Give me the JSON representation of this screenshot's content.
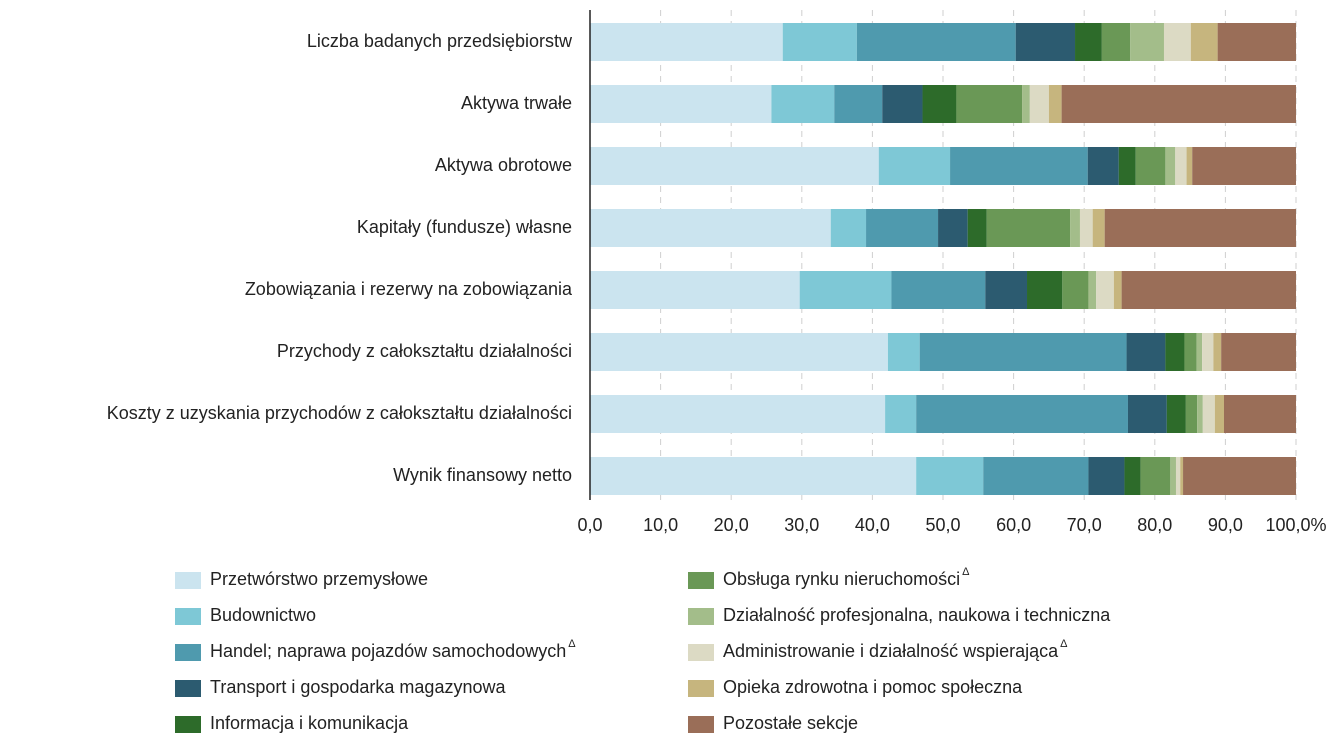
{
  "chart_data": {
    "type": "stacked-bar-horizontal",
    "categories": [
      "Liczba badanych przedsiębiorstw",
      "Aktywa trwałe",
      "Aktywa obrotowe",
      "Kapitały (fundusze) własne",
      "Zobowiązania i rezerwy na zobowiązania",
      "Przychody z całokształtu działalności",
      "Koszty z uzyskania przychodów z całokształtu działalności",
      "Wynik finansowy netto"
    ],
    "series": [
      {
        "name": "Przetwórstwo przemysłowe",
        "color": "#cbe4ef",
        "values": [
          27.3,
          25.7,
          40.9,
          34.1,
          29.7,
          42.2,
          41.8,
          46.2
        ]
      },
      {
        "name": "Budownictwo",
        "color": "#7ec8d6",
        "values": [
          10.5,
          8.9,
          10.1,
          5.0,
          13.0,
          4.5,
          4.4,
          9.5
        ]
      },
      {
        "name": "Handel; naprawa pojazdów samochodowych",
        "name_sup": "Δ",
        "color": "#4f9aae",
        "values": [
          22.5,
          6.8,
          19.5,
          10.2,
          13.3,
          29.3,
          30.0,
          14.9
        ]
      },
      {
        "name": "Transport i gospodarka magazynowa",
        "color": "#2c5b70",
        "values": [
          8.4,
          5.7,
          4.4,
          4.2,
          5.9,
          5.5,
          5.5,
          5.1
        ]
      },
      {
        "name": "Informacja i komunikacja",
        "color": "#2d6b2a",
        "values": [
          3.8,
          4.8,
          2.4,
          2.7,
          5.0,
          2.7,
          2.7,
          2.3
        ]
      },
      {
        "name": "Obsługa rynku nieruchomości",
        "name_sup": "Δ",
        "color": "#6a9856",
        "values": [
          4.0,
          9.3,
          4.2,
          11.8,
          3.7,
          1.7,
          1.6,
          4.2
        ]
      },
      {
        "name": "Działalność profesjonalna, naukowa i techniczna",
        "color": "#a3bd8a",
        "values": [
          4.8,
          1.1,
          1.4,
          1.4,
          1.1,
          0.8,
          0.8,
          0.8
        ]
      },
      {
        "name": "Administrowanie i działalność wspierająca",
        "name_sup": "Δ",
        "color": "#dcdac4",
        "values": [
          3.8,
          2.7,
          1.6,
          1.8,
          2.5,
          1.6,
          1.7,
          0.6
        ]
      },
      {
        "name": "Opieka zdrowotna i pomoc społeczna",
        "color": "#c6b57e",
        "values": [
          3.8,
          1.8,
          0.8,
          1.7,
          1.1,
          1.1,
          1.3,
          0.4
        ]
      },
      {
        "name": "Pozostałe sekcje",
        "color": "#9a6e58",
        "values": [
          11.1,
          33.2,
          14.7,
          27.1,
          24.7,
          10.6,
          10.2,
          16.0
        ]
      }
    ],
    "xlim": [
      0,
      100
    ],
    "xticks": [
      {
        "value": 0,
        "label": "0,0"
      },
      {
        "value": 10,
        "label": "10,0"
      },
      {
        "value": 20,
        "label": "20,0"
      },
      {
        "value": 30,
        "label": "30,0"
      },
      {
        "value": 40,
        "label": "40,0"
      },
      {
        "value": 50,
        "label": "50,0"
      },
      {
        "value": 60,
        "label": "60,0"
      },
      {
        "value": 70,
        "label": "70,0"
      },
      {
        "value": 80,
        "label": "80,0"
      },
      {
        "value": 90,
        "label": "90,0"
      },
      {
        "value": 100,
        "label": "100,0%"
      }
    ],
    "grid": true
  }
}
